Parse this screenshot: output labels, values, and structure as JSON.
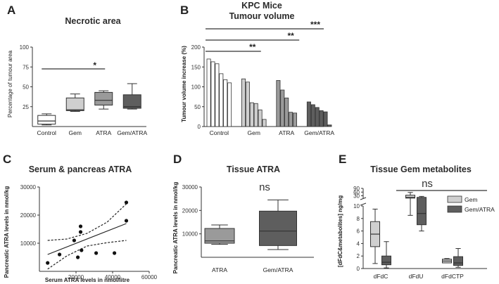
{
  "figure": {
    "panel_a_letter": "A",
    "panel_b_letter": "B",
    "panel_c_letter": "C",
    "panel_d_letter": "D",
    "panel_e_letter": "E",
    "panel_b_group": "KPC Mice"
  },
  "colors": {
    "white": "#ffffff",
    "light": "#cfcfcf",
    "medium": "#9a9a9a",
    "dark": "#5e5e5e",
    "darkest": "#4a4a4a",
    "axis": "#333333"
  },
  "chart_data": [
    {
      "id": "A",
      "type": "box",
      "title": "Necrotic area",
      "ylabel": "Percentage of tumour area",
      "ylim": [
        0,
        100
      ],
      "yticks": [
        25,
        50,
        75,
        100
      ],
      "categories": [
        "Control",
        "Gem",
        "ATRA",
        "Gem/ATRA"
      ],
      "boxes": [
        {
          "min": 2,
          "q1": 3,
          "median": 7,
          "q3": 14,
          "max": 16,
          "fill": "#ffffff"
        },
        {
          "min": 19,
          "q1": 20,
          "median": 21,
          "q3": 36,
          "max": 41,
          "fill": "#cfcfcf"
        },
        {
          "min": 22,
          "q1": 27,
          "median": 33,
          "q3": 43,
          "max": 45,
          "fill": "#9a9a9a"
        },
        {
          "min": 22,
          "q1": 23,
          "median": 25,
          "q3": 40,
          "max": 54,
          "fill": "#5e5e5e"
        }
      ],
      "significance": [
        {
          "from": "Control",
          "to": "ATRA",
          "label": "*"
        }
      ]
    },
    {
      "id": "B",
      "type": "bar",
      "title": "Tumour volume",
      "ylabel": "Tumour volume increase (%)",
      "ylim": [
        0,
        200
      ],
      "yticks": [
        0,
        50,
        100,
        150,
        200
      ],
      "groups": [
        {
          "name": "Control",
          "fill": "#ffffff",
          "values": [
            170,
            163,
            158,
            133,
            118,
            110
          ]
        },
        {
          "name": "Gem",
          "fill": "#cfcfcf",
          "values": [
            120,
            112,
            60,
            58,
            42,
            18
          ]
        },
        {
          "name": "ATRA",
          "fill": "#9a9a9a",
          "values": [
            116,
            92,
            72,
            36,
            34
          ]
        },
        {
          "name": "Gem/ATRA",
          "fill": "#5e5e5e",
          "values": [
            62,
            55,
            48,
            40,
            37,
            4
          ]
        }
      ],
      "significance": [
        {
          "from": "Control",
          "to": "Gem",
          "label": "**"
        },
        {
          "from": "Control",
          "to": "ATRA",
          "label": "**"
        },
        {
          "from": "Control",
          "to": "Gem/ATRA",
          "label": "***"
        }
      ]
    },
    {
      "id": "C",
      "type": "scatter",
      "title": "Serum & pancreas ATRA",
      "xlabel": "Serum ATRA levels in nmol/litre",
      "ylabel": "Pancreatic ATRA levels in nmol/kg",
      "xlim": [
        0,
        60000
      ],
      "ylim": [
        0,
        30000
      ],
      "xticks": [
        20000,
        40000,
        60000
      ],
      "yticks": [
        10000,
        20000,
        30000
      ],
      "points": [
        [
          4500,
          3000
        ],
        [
          11000,
          6000
        ],
        [
          19000,
          11000
        ],
        [
          21000,
          5000
        ],
        [
          22500,
          14000
        ],
        [
          22500,
          16000
        ],
        [
          23000,
          7500
        ],
        [
          31000,
          6500
        ],
        [
          41000,
          6500
        ],
        [
          47500,
          18000
        ],
        [
          47500,
          24500
        ]
      ],
      "fit": {
        "x": [
          4500,
          47500
        ],
        "y": [
          6000,
          17000
        ]
      },
      "ci_upper": {
        "x": [
          4500,
          15000,
          26000,
          37000,
          47500
        ],
        "y": [
          11000,
          11500,
          13500,
          17500,
          24000
        ]
      },
      "ci_lower": {
        "x": [
          4500,
          15000,
          26000,
          37000,
          47500
        ],
        "y": [
          800,
          5500,
          9000,
          10200,
          11000
        ]
      }
    },
    {
      "id": "D",
      "type": "box",
      "title": "Tissue ATRA",
      "ylabel": "Pancreatic ATRA levels in nmol/kg",
      "ylim": [
        0,
        30000
      ],
      "yticks": [
        10000,
        20000,
        30000
      ],
      "categories": [
        "ATRA",
        "Gem/ATRA"
      ],
      "boxes": [
        {
          "min": 5500,
          "q1": 6000,
          "median": 7000,
          "q3": 12300,
          "max": 13800,
          "fill": "#9a9a9a"
        },
        {
          "min": 3300,
          "q1": 5000,
          "median": 11200,
          "q3": 19700,
          "max": 24500,
          "fill": "#5e5e5e"
        }
      ],
      "annotation": "ns"
    },
    {
      "id": "E",
      "type": "box",
      "title": "Tissue Gem metabolites",
      "ylabel": "[dFdC&metabolites] ng/mg",
      "yticks": [
        0,
        2,
        4,
        6,
        8,
        10,
        30,
        60,
        90
      ],
      "categories": [
        "dFdC",
        "dFdU",
        "dFdCTP"
      ],
      "legend": [
        "Gem",
        "Gem/ATRA"
      ],
      "series": [
        {
          "name": "Gem",
          "fill": "#cfcfcf",
          "boxes": [
            {
              "min": 0.8,
              "q1": 3.5,
              "median": 5.5,
              "q3": 7.5,
              "max": 9.5
            },
            {
              "min": 8.5,
              "q1": 11,
              "median": 17,
              "q3": 35,
              "max": 57
            },
            {
              "min": 0.9,
              "q1": 0.9,
              "median": 1.2,
              "q3": 1.5,
              "max": 1.6
            }
          ]
        },
        {
          "name": "Gem/ATRA",
          "fill": "#5e5e5e",
          "boxes": [
            {
              "min": 0.1,
              "q1": 0.6,
              "median": 1.0,
              "q3": 2.0,
              "max": 4.3
            },
            {
              "min": 6.0,
              "q1": 7.0,
              "median": 8.8,
              "q3": 17,
              "max": 25
            },
            {
              "min": 0.2,
              "q1": 0.5,
              "median": 0.9,
              "q3": 1.9,
              "max": 3.2
            }
          ]
        }
      ],
      "annotation": "ns"
    }
  ]
}
